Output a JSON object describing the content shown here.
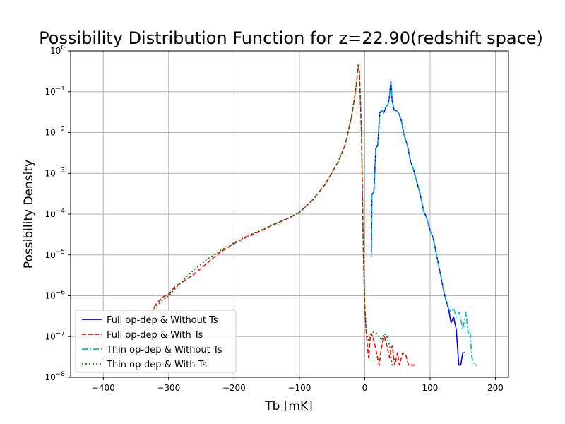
{
  "chart_data": {
    "type": "line",
    "title": "Possibility Distribution Function for z=22.90(redshift space)",
    "xlabel": "Tb [mK]",
    "ylabel": "Possibility Density",
    "xlim": [
      -450,
      220
    ],
    "ylim": [
      1e-08,
      1
    ],
    "yscale": "log",
    "grid": true,
    "legend_position": "lower-left",
    "x_ticks": [
      -400,
      -300,
      -200,
      -100,
      0,
      100,
      200
    ],
    "x_tick_labels": [
      "−400",
      "−300",
      "−200",
      "−100",
      "0",
      "100",
      "200"
    ],
    "y_ticks": [
      1e-08,
      1e-07,
      1e-06,
      1e-05,
      0.0001,
      0.001,
      0.01,
      0.1,
      1
    ],
    "y_tick_labels": [
      {
        "base": "10",
        "exp": "−8"
      },
      {
        "base": "10",
        "exp": "−7"
      },
      {
        "base": "10",
        "exp": "−6"
      },
      {
        "base": "10",
        "exp": "−5"
      },
      {
        "base": "10",
        "exp": "−4"
      },
      {
        "base": "10",
        "exp": "−3"
      },
      {
        "base": "10",
        "exp": "−2"
      },
      {
        "base": "10",
        "exp": "−1"
      },
      {
        "base": "10",
        "exp": "0"
      }
    ],
    "series": [
      {
        "name": "Full op-dep & Without Ts",
        "color": "#0000ff",
        "style": "solid",
        "points": [
          [
            10,
            9e-06
          ],
          [
            11,
            0.0003
          ],
          [
            14,
            0.00035
          ],
          [
            17,
            0.004
          ],
          [
            20,
            0.005
          ],
          [
            23,
            0.03
          ],
          [
            26,
            0.035
          ],
          [
            29,
            0.03
          ],
          [
            32,
            0.04
          ],
          [
            36,
            0.05
          ],
          [
            38,
            0.08
          ],
          [
            40,
            0.18
          ],
          [
            42,
            0.06
          ],
          [
            45,
            0.035
          ],
          [
            48,
            0.035
          ],
          [
            52,
            0.03
          ],
          [
            56,
            0.02
          ],
          [
            60,
            0.009
          ],
          [
            65,
            0.005
          ],
          [
            70,
            0.002
          ],
          [
            75,
            0.0012
          ],
          [
            80,
            0.0006
          ],
          [
            85,
            0.0003
          ],
          [
            90,
            0.00012
          ],
          [
            95,
            8e-05
          ],
          [
            100,
            4e-05
          ],
          [
            105,
            2.5e-05
          ],
          [
            110,
            1e-05
          ],
          [
            115,
            4e-06
          ],
          [
            120,
            1.5e-06
          ],
          [
            124,
            8e-07
          ],
          [
            128,
            5e-07
          ],
          [
            132,
            2.2e-07
          ],
          [
            136,
            3e-07
          ],
          [
            140,
            1.5e-07
          ],
          [
            144,
            2e-08
          ],
          [
            147,
            2e-08
          ],
          [
            150,
            4e-08
          ],
          [
            153,
            4e-08
          ]
        ]
      },
      {
        "name": "Full op-dep & With Ts",
        "color": "#ff0000",
        "style": "dashed",
        "points": [
          [
            -340,
            1e-07
          ],
          [
            -330,
            3e-07
          ],
          [
            -320,
            6e-07
          ],
          [
            -310,
            9e-07
          ],
          [
            -300,
            1.1e-06
          ],
          [
            -290,
            1.7e-06
          ],
          [
            -280,
            2.1e-06
          ],
          [
            -270,
            2.7e-06
          ],
          [
            -260,
            3.5e-06
          ],
          [
            -250,
            4.8e-06
          ],
          [
            -240,
            6.5e-06
          ],
          [
            -230,
            9e-06
          ],
          [
            -220,
            1.2e-05
          ],
          [
            -200,
            1.9e-05
          ],
          [
            -180,
            2.8e-05
          ],
          [
            -160,
            3.8e-05
          ],
          [
            -140,
            5.5e-05
          ],
          [
            -120,
            7.5e-05
          ],
          [
            -100,
            0.00011
          ],
          [
            -80,
            0.00022
          ],
          [
            -60,
            0.00055
          ],
          [
            -40,
            0.002
          ],
          [
            -30,
            0.005
          ],
          [
            -20,
            0.025
          ],
          [
            -15,
            0.08
          ],
          [
            -12,
            0.2
          ],
          [
            -10,
            0.45
          ],
          [
            -8,
            0.3
          ],
          [
            -5,
            0.01
          ],
          [
            -2,
            1e-05
          ],
          [
            0,
            6e-07
          ],
          [
            2,
            1.5e-07
          ],
          [
            4,
            6e-08
          ],
          [
            6,
            3e-08
          ],
          [
            8,
            8e-08
          ],
          [
            10,
            1.2e-07
          ],
          [
            14,
            8e-08
          ],
          [
            18,
            4e-08
          ],
          [
            22,
            2e-08
          ],
          [
            26,
            6e-08
          ],
          [
            30,
            1e-07
          ],
          [
            34,
            6e-08
          ],
          [
            38,
            3e-08
          ],
          [
            42,
            6e-08
          ],
          [
            46,
            2e-08
          ],
          [
            50,
            4e-08
          ],
          [
            53,
            2e-08
          ],
          [
            58,
            4e-08
          ],
          [
            63,
            3.5e-08
          ],
          [
            67,
            2e-08
          ],
          [
            70,
            2e-08
          ],
          [
            75,
            2e-08
          ],
          [
            80,
            2e-08
          ]
        ]
      },
      {
        "name": "Thin op-dep & Without Ts",
        "color": "#00bfbf",
        "style": "dashdot",
        "points": [
          [
            10,
            9e-06
          ],
          [
            11,
            0.0003
          ],
          [
            14,
            0.00035
          ],
          [
            17,
            0.004
          ],
          [
            20,
            0.005
          ],
          [
            23,
            0.03
          ],
          [
            26,
            0.035
          ],
          [
            29,
            0.03
          ],
          [
            32,
            0.04
          ],
          [
            36,
            0.05
          ],
          [
            38,
            0.08
          ],
          [
            40,
            0.17
          ],
          [
            42,
            0.06
          ],
          [
            45,
            0.035
          ],
          [
            48,
            0.035
          ],
          [
            52,
            0.03
          ],
          [
            56,
            0.02
          ],
          [
            60,
            0.009
          ],
          [
            65,
            0.005
          ],
          [
            70,
            0.002
          ],
          [
            75,
            0.0012
          ],
          [
            80,
            0.0006
          ],
          [
            85,
            0.0003
          ],
          [
            90,
            0.00012
          ],
          [
            95,
            8e-05
          ],
          [
            100,
            4e-05
          ],
          [
            105,
            2.5e-05
          ],
          [
            110,
            1e-05
          ],
          [
            115,
            4e-06
          ],
          [
            120,
            1.5e-06
          ],
          [
            124,
            8e-07
          ],
          [
            128,
            5e-07
          ],
          [
            132,
            4e-07
          ],
          [
            136,
            5e-07
          ],
          [
            140,
            3e-07
          ],
          [
            145,
            4e-07
          ],
          [
            150,
            1.5e-07
          ],
          [
            155,
            4e-07
          ],
          [
            158,
            1.2e-07
          ],
          [
            161,
            1.5e-07
          ],
          [
            164,
            3e-08
          ],
          [
            168,
            2e-08
          ],
          [
            172,
            2e-08
          ]
        ]
      },
      {
        "name": "Thin op-dep & With Ts",
        "color": "#008000",
        "style": "dotted",
        "points": [
          [
            -350,
            1.1e-07
          ],
          [
            -340,
            2e-07
          ],
          [
            -330,
            3.5e-07
          ],
          [
            -320,
            5.5e-07
          ],
          [
            -310,
            7.5e-07
          ],
          [
            -300,
            1e-06
          ],
          [
            -290,
            1.5e-06
          ],
          [
            -280,
            2.2e-06
          ],
          [
            -270,
            3.2e-06
          ],
          [
            -260,
            4.5e-06
          ],
          [
            -250,
            6e-06
          ],
          [
            -240,
            8e-06
          ],
          [
            -220,
            1.3e-05
          ],
          [
            -200,
            2e-05
          ],
          [
            -180,
            2.9e-05
          ],
          [
            -160,
            4e-05
          ],
          [
            -140,
            5.6e-05
          ],
          [
            -120,
            7.6e-05
          ],
          [
            -100,
            0.00011
          ],
          [
            -80,
            0.00022
          ],
          [
            -60,
            0.00055
          ],
          [
            -40,
            0.002
          ],
          [
            -30,
            0.005
          ],
          [
            -20,
            0.025
          ],
          [
            -15,
            0.08
          ],
          [
            -12,
            0.2
          ],
          [
            -10,
            0.45
          ],
          [
            -8,
            0.3
          ],
          [
            -5,
            0.01
          ],
          [
            -2,
            1e-05
          ],
          [
            0,
            6e-07
          ],
          [
            2,
            1.5e-07
          ],
          [
            4,
            1e-07
          ],
          [
            6,
            8e-08
          ],
          [
            8,
            1e-07
          ],
          [
            10,
            1.2e-07
          ],
          [
            14,
            1.3e-07
          ],
          [
            18,
            1.2e-07
          ],
          [
            22,
            1e-07
          ],
          [
            26,
            8e-08
          ],
          [
            30,
            1.2e-07
          ],
          [
            34,
            1e-07
          ],
          [
            38,
            6e-08
          ],
          [
            42,
            2e-08
          ],
          [
            45,
            2e-08
          ]
        ]
      }
    ]
  }
}
